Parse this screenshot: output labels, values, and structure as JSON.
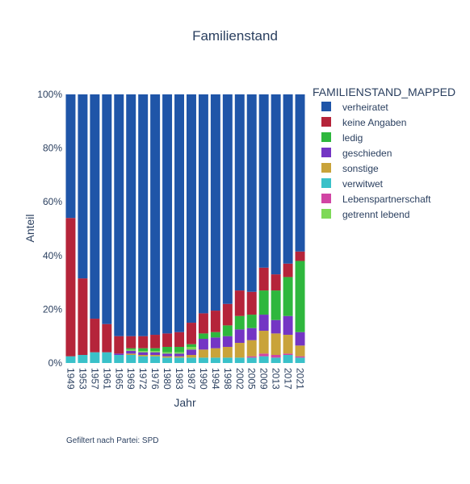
{
  "chart_data": {
    "type": "bar",
    "stacked": true,
    "normalized": true,
    "title": "Familienstand",
    "xlabel": "Jahr",
    "ylabel": "Anteil",
    "ylim": [
      0,
      1
    ],
    "yticks": [
      "0%",
      "20%",
      "40%",
      "60%",
      "80%",
      "100%"
    ],
    "legend_title": "FAMILIENSTAND_MAPPED",
    "legend_position": "right",
    "categories": [
      "1949",
      "1953",
      "1957",
      "1961",
      "1965",
      "1969",
      "1972",
      "1976",
      "1980",
      "1983",
      "1987",
      "1990",
      "1994",
      "1998",
      "2002",
      "2005",
      "2009",
      "2013",
      "2017",
      "2021"
    ],
    "series": [
      {
        "name": "verwitwet",
        "color": "#3ac1c9",
        "values": [
          0.025,
          0.03,
          0.04,
          0.04,
          0.03,
          0.03,
          0.025,
          0.025,
          0.02,
          0.02,
          0.02,
          0.02,
          0.02,
          0.02,
          0.02,
          0.02,
          0.025,
          0.02,
          0.03,
          0.02
        ]
      },
      {
        "name": "Lebenspartnerschaft",
        "color": "#d145a4",
        "values": [
          0,
          0,
          0,
          0,
          0,
          0,
          0,
          0,
          0,
          0,
          0,
          0,
          0,
          0,
          0,
          0.005,
          0.01,
          0.01,
          0.005,
          0.005
        ]
      },
      {
        "name": "sonstige",
        "color": "#c9a33a",
        "values": [
          0,
          0,
          0,
          0,
          0,
          0.005,
          0.005,
          0.005,
          0.005,
          0.005,
          0.01,
          0.03,
          0.035,
          0.04,
          0.055,
          0.06,
          0.085,
          0.08,
          0.07,
          0.04
        ]
      },
      {
        "name": "geschieden",
        "color": "#7435c4",
        "values": [
          0,
          0,
          0,
          0,
          0.005,
          0.01,
          0.01,
          0.01,
          0.01,
          0.01,
          0.02,
          0.04,
          0.04,
          0.04,
          0.05,
          0.045,
          0.06,
          0.05,
          0.07,
          0.05
        ]
      },
      {
        "name": "getrennt lebend",
        "color": "#7ed957",
        "values": [
          0,
          0,
          0,
          0,
          0,
          0.005,
          0.005,
          0.005,
          0.005,
          0.005,
          0.01,
          0,
          0,
          0,
          0,
          0,
          0,
          0,
          0,
          0
        ]
      },
      {
        "name": "ledig",
        "color": "#2eb73d",
        "values": [
          0,
          0,
          0,
          0,
          0,
          0.005,
          0.01,
          0.01,
          0.02,
          0.02,
          0.01,
          0.02,
          0.02,
          0.04,
          0.05,
          0.05,
          0.09,
          0.11,
          0.145,
          0.265
        ]
      },
      {
        "name": "keine Angaben",
        "color": "#b5243a",
        "values": [
          0.515,
          0.285,
          0.125,
          0.105,
          0.065,
          0.045,
          0.045,
          0.05,
          0.05,
          0.055,
          0.08,
          0.075,
          0.08,
          0.08,
          0.095,
          0.085,
          0.085,
          0.06,
          0.05,
          0.035
        ]
      },
      {
        "name": "verheiratet",
        "color": "#1f55a8",
        "values": [
          0.46,
          0.685,
          0.835,
          0.855,
          0.9,
          0.9,
          0.9,
          0.895,
          0.89,
          0.885,
          0.85,
          0.815,
          0.805,
          0.78,
          0.73,
          0.735,
          0.645,
          0.67,
          0.63,
          0.585
        ]
      }
    ],
    "legend_order": [
      "verheiratet",
      "keine Angaben",
      "ledig",
      "geschieden",
      "sonstige",
      "verwitwet",
      "Lebenspartnerschaft",
      "getrennt lebend"
    ]
  },
  "footnote": "Gefiltert nach Partei: SPD"
}
